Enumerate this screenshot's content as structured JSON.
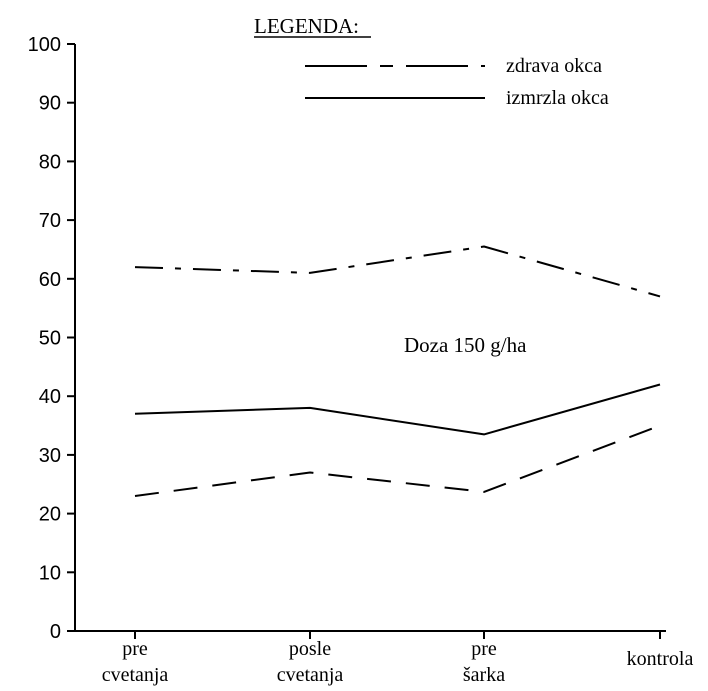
{
  "chart_data": {
    "type": "line",
    "title": "",
    "xlabel": "",
    "ylabel": "",
    "categories": [
      [
        "pre",
        "cvetanja"
      ],
      [
        "posle",
        "cvetanja"
      ],
      [
        "pre",
        "šarka"
      ],
      [
        "kontrola"
      ]
    ],
    "ylim": [
      0,
      100
    ],
    "yticks": [
      0,
      10,
      20,
      30,
      40,
      50,
      60,
      70,
      80,
      90,
      100
    ],
    "grid": false,
    "legend": {
      "title": "LEGENDA:",
      "position": "top-center",
      "entries": [
        {
          "label": "zdrava okca",
          "style": "long-dash-short-dash"
        },
        {
          "label": "izmrzla okca",
          "style": "solid"
        }
      ]
    },
    "annotation": "Doza 150 g/ha",
    "series": [
      {
        "style": "dash-dot",
        "values": [
          62,
          61,
          65.5,
          57
        ]
      },
      {
        "style": "solid",
        "values": [
          37,
          38,
          33.5,
          42
        ]
      },
      {
        "style": "dashed",
        "values": [
          23,
          27,
          23.7,
          35
        ]
      }
    ]
  }
}
